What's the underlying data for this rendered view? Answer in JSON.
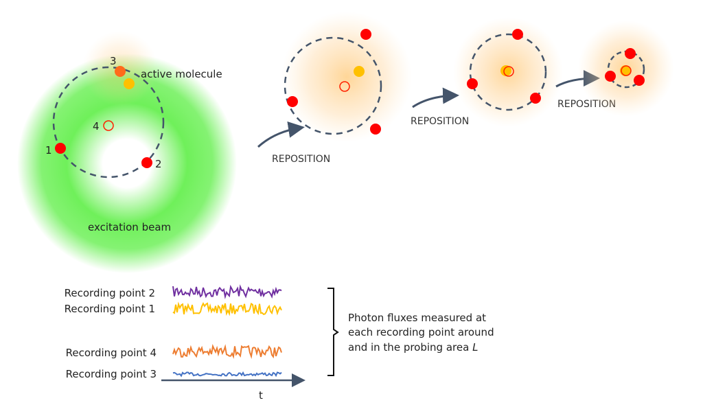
{
  "colors": {
    "beam": "#5ee84a",
    "glow": "#ffc060",
    "recording_point": "#ff0000",
    "active_molecule": "#ffc000",
    "point3": "#ff6a1a",
    "dashed_circle": "#44546a",
    "arrow": "#44546a"
  },
  "scene": {
    "point_labels": [
      "1",
      "2",
      "3",
      "4"
    ],
    "active_molecule_label": "active molecule",
    "beam_label": "excitation beam"
  },
  "steps": [
    {
      "label": "REPOSITION"
    },
    {
      "label": "REPOSITION"
    },
    {
      "label": "REPOSITION"
    }
  ],
  "traces": [
    {
      "label": "Recording point 2",
      "color": "#7030a0",
      "amplitude": "high"
    },
    {
      "label": "Recording point 1",
      "color": "#ffc000",
      "amplitude": "high"
    },
    {
      "label": "Recording point 4",
      "color": "#ed7d31",
      "amplitude": "high"
    },
    {
      "label": "Recording point 3",
      "color": "#4472c4",
      "amplitude": "low"
    }
  ],
  "time_axis_label": "t",
  "bracket_text": {
    "lines": [
      "Photon fluxes measured at",
      "each recording point around",
      "and in the probing area "
    ],
    "italic_symbol": "L"
  }
}
